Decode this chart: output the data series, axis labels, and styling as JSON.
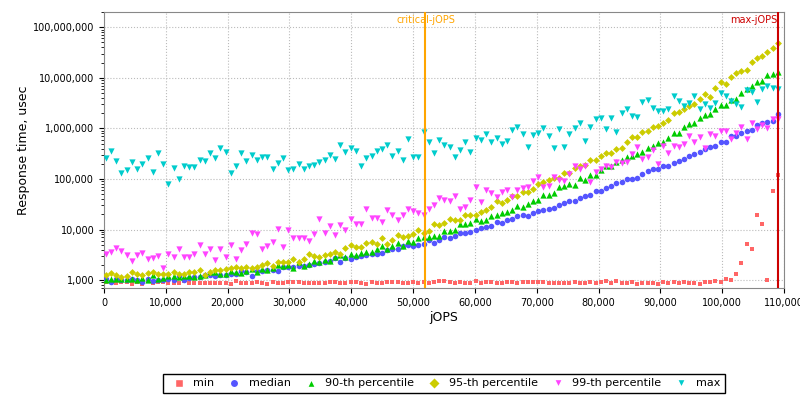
{
  "xlabel": "jOPS",
  "ylabel": "Response time, usec",
  "xmin": 0,
  "xmax": 110000,
  "ymin": 700,
  "ymax": 200000000,
  "critical_jops": 52000,
  "max_jops": 109000,
  "critical_label": "critical-jOPS",
  "max_label": "max-jOPS",
  "critical_color": "#FFA500",
  "max_color": "#CC0000",
  "bg_color": "#FFFFFF",
  "grid_color": "#BBBBBB",
  "series_colors": [
    "#FF6666",
    "#5555FF",
    "#00CC00",
    "#CCCC00",
    "#FF44FF",
    "#00CCCC"
  ],
  "legend_labels": [
    "min",
    "median",
    "90-th percentile",
    "95-th percentile",
    "99-th percentile",
    "max"
  ],
  "n_points": 130
}
